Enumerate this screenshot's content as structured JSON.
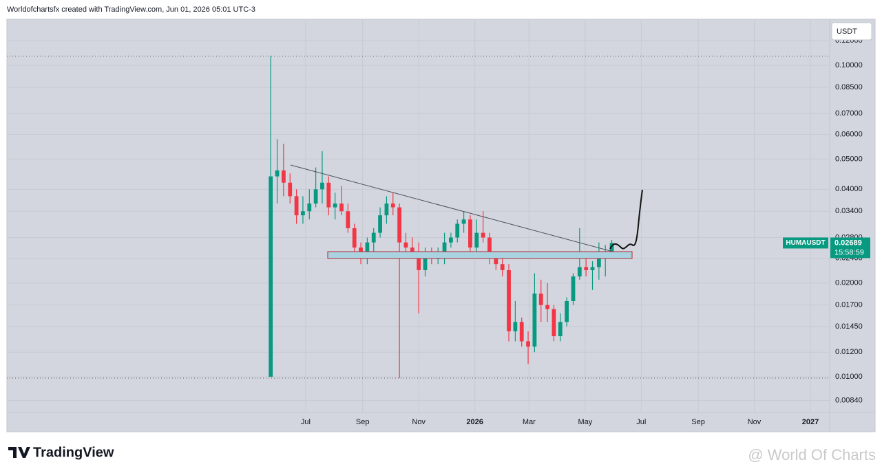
{
  "header": {
    "credit": "Worldofchartsfx created with TradingView.com, Jun 01, 2026 05:01 UTC-3"
  },
  "currency": "USDT",
  "brand": "TradingView",
  "watermark": "@ World Of Charts",
  "chart_data": {
    "type": "candlestick",
    "symbol": "HUMAUSDT",
    "countdown": "15:58:59",
    "log_scale": true,
    "grid": true,
    "up_color": "#089981",
    "down_color": "#f23645",
    "x": [
      -38,
      -31,
      -24,
      -17,
      -10,
      -3,
      4,
      11,
      18,
      25,
      32,
      39,
      46,
      53,
      60,
      67,
      74,
      81,
      88,
      95,
      102,
      109,
      116,
      123,
      130,
      137,
      144,
      151,
      158,
      165,
      172,
      179,
      186,
      193,
      200,
      207,
      214,
      221,
      228,
      235,
      242,
      249,
      256,
      263,
      270,
      277,
      284,
      291,
      298,
      305,
      312,
      319,
      326,
      333
    ],
    "open": [
      0.01,
      0.044,
      0.046,
      0.042,
      0.038,
      0.033,
      0.034,
      0.036,
      0.04,
      0.042,
      0.035,
      0.036,
      0.034,
      0.03,
      0.026,
      0.024,
      0.027,
      0.029,
      0.033,
      0.036,
      0.035,
      0.027,
      0.026,
      0.025,
      0.022,
      0.025,
      0.024,
      0.024,
      0.027,
      0.028,
      0.031,
      0.032,
      0.026,
      0.029,
      0.028,
      0.024,
      0.023,
      0.022,
      0.014,
      0.015,
      0.013,
      0.0125,
      0.0185,
      0.017,
      0.0165,
      0.0135,
      0.015,
      0.0175,
      0.021,
      0.0225,
      0.022,
      0.0225,
      0.024,
      0.025
    ],
    "high": [
      0.107,
      0.058,
      0.056,
      0.045,
      0.04,
      0.038,
      0.04,
      0.047,
      0.053,
      0.044,
      0.039,
      0.041,
      0.036,
      0.031,
      0.027,
      0.028,
      0.03,
      0.035,
      0.038,
      0.039,
      0.036,
      0.029,
      0.028,
      0.027,
      0.026,
      0.026,
      0.026,
      0.029,
      0.029,
      0.032,
      0.034,
      0.033,
      0.032,
      0.034,
      0.029,
      0.025,
      0.025,
      0.023,
      0.0175,
      0.0155,
      0.014,
      0.0215,
      0.0205,
      0.02,
      0.017,
      0.016,
      0.018,
      0.0215,
      0.03,
      0.024,
      0.0235,
      0.027,
      0.0265,
      0.0275
    ],
    "low": [
      0.01,
      0.036,
      0.038,
      0.036,
      0.031,
      0.031,
      0.032,
      0.035,
      0.036,
      0.033,
      0.032,
      0.033,
      0.029,
      0.025,
      0.023,
      0.023,
      0.025,
      0.028,
      0.031,
      0.033,
      0.0099,
      0.025,
      0.024,
      0.016,
      0.021,
      0.023,
      0.023,
      0.023,
      0.026,
      0.027,
      0.029,
      0.024,
      0.025,
      0.027,
      0.023,
      0.022,
      0.021,
      0.013,
      0.013,
      0.0125,
      0.011,
      0.012,
      0.015,
      0.015,
      0.013,
      0.013,
      0.0145,
      0.017,
      0.0205,
      0.021,
      0.019,
      0.0205,
      0.021,
      0.0245
    ],
    "close": [
      0.044,
      0.046,
      0.042,
      0.038,
      0.033,
      0.034,
      0.036,
      0.04,
      0.042,
      0.035,
      0.036,
      0.034,
      0.03,
      0.026,
      0.024,
      0.027,
      0.029,
      0.033,
      0.036,
      0.035,
      0.027,
      0.026,
      0.025,
      0.022,
      0.025,
      0.024,
      0.024,
      0.027,
      0.028,
      0.031,
      0.032,
      0.026,
      0.029,
      0.028,
      0.024,
      0.023,
      0.022,
      0.014,
      0.015,
      0.013,
      0.0125,
      0.0185,
      0.017,
      0.0165,
      0.0135,
      0.015,
      0.0175,
      0.021,
      0.0225,
      0.022,
      0.0225,
      0.024,
      0.025,
      0.02689
    ],
    "xlim": [
      -325,
      570
    ],
    "xticks": [
      {
        "value": 0,
        "label": "Jul"
      },
      {
        "value": 62,
        "label": "Sep"
      },
      {
        "value": 123,
        "label": "Nov"
      },
      {
        "value": 184,
        "label": "2026"
      },
      {
        "value": 243,
        "label": "Mar"
      },
      {
        "value": 304,
        "label": "May"
      },
      {
        "value": 365,
        "label": "Jul"
      },
      {
        "value": 427,
        "label": "Sep"
      },
      {
        "value": 488,
        "label": "Nov"
      },
      {
        "value": 549,
        "label": "2027"
      }
    ],
    "ylim": [
      0.00768,
      0.1406
    ],
    "yticks": [
      {
        "value": 0.12,
        "label": "0.12000"
      },
      {
        "value": 0.1,
        "label": "0.10000"
      },
      {
        "value": 0.085,
        "label": "0.08500"
      },
      {
        "value": 0.07,
        "label": "0.07000"
      },
      {
        "value": 0.06,
        "label": "0.06000"
      },
      {
        "value": 0.05,
        "label": "0.05000"
      },
      {
        "value": 0.04,
        "label": "0.04000"
      },
      {
        "value": 0.034,
        "label": "0.03400"
      },
      {
        "value": 0.028,
        "label": "0.02800"
      },
      {
        "value": 0.024,
        "label": "0.02400"
      },
      {
        "value": 0.02,
        "label": "0.02000"
      },
      {
        "value": 0.017,
        "label": "0.01700"
      },
      {
        "value": 0.0145,
        "label": "0.01450"
      },
      {
        "value": 0.012,
        "label": "0.01200"
      },
      {
        "value": 0.01,
        "label": "0.01000"
      },
      {
        "value": 0.0084,
        "label": "0.00840"
      }
    ]
  }
}
